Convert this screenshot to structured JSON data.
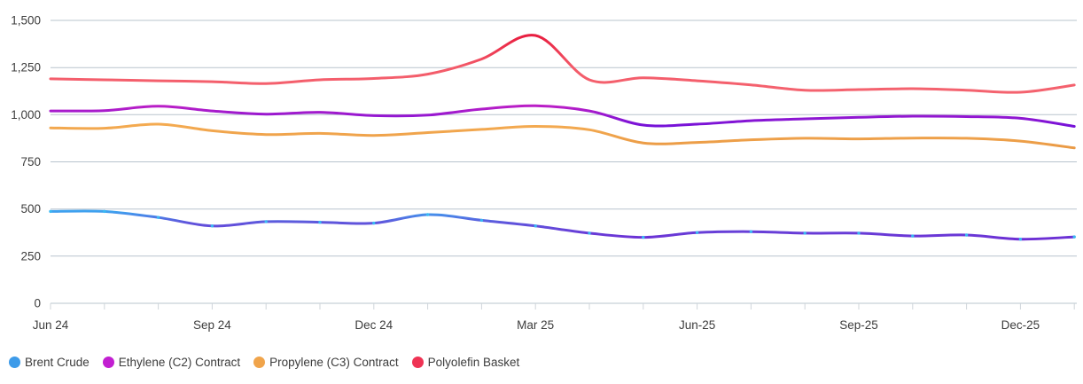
{
  "chart_data": {
    "type": "line",
    "title": "",
    "x_axis": {
      "point_count": 20,
      "labeled_ticks": [
        {
          "index": 0,
          "label": "Jun 24"
        },
        {
          "index": 3,
          "label": "Sep 24"
        },
        {
          "index": 6,
          "label": "Dec 24"
        },
        {
          "index": 9,
          "label": "Mar 25"
        },
        {
          "index": 12,
          "label": "Jun-25"
        },
        {
          "index": 15,
          "label": "Sep-25"
        },
        {
          "index": 18,
          "label": "Dec-25"
        }
      ]
    },
    "y_axis": {
      "min": 0,
      "max": 1500,
      "step": 250,
      "tick_labels": [
        "0",
        "250",
        "500",
        "750",
        "1,000",
        "1,250",
        "1,500"
      ]
    },
    "grid": {
      "horizontal": true,
      "color": "#b9c4cd",
      "tick_color": "#cfd5da"
    },
    "text_color": "#3d3d3d",
    "series": [
      {
        "name": "Brent Crude",
        "legend_color": "#3d9be9",
        "markers": true,
        "marker_color": "#39b9f3",
        "gradient": [
          {
            "offset": "0%",
            "color": "#3ea2ef"
          },
          {
            "offset": "40%",
            "color": "#5f55dc"
          },
          {
            "offset": "100%",
            "color": "#6d2ed4"
          }
        ],
        "values": [
          487,
          487,
          455,
          410,
          433,
          430,
          425,
          470,
          440,
          410,
          372,
          350,
          375,
          380,
          372,
          372,
          357,
          362,
          340,
          352
        ]
      },
      {
        "name": "Ethylene (C2) Contract",
        "legend_color": "#c21fd1",
        "markers": false,
        "marker_color": "#c21fd1",
        "gradient": [
          {
            "offset": "0%",
            "color": "#bb1fc6"
          },
          {
            "offset": "45%",
            "color": "#9718d0"
          },
          {
            "offset": "100%",
            "color": "#7412d8"
          }
        ],
        "values": [
          1020,
          1022,
          1045,
          1020,
          1003,
          1013,
          995,
          998,
          1030,
          1047,
          1020,
          945,
          950,
          968,
          978,
          986,
          992,
          990,
          981,
          938
        ]
      },
      {
        "name": "Propylene (C3) Contract",
        "legend_color": "#f0a44b",
        "markers": false,
        "marker_color": "#f0a44b",
        "gradient": [
          {
            "offset": "0%",
            "color": "#f4ab51"
          },
          {
            "offset": "100%",
            "color": "#ea9a45"
          }
        ],
        "values": [
          930,
          928,
          950,
          915,
          895,
          901,
          890,
          905,
          922,
          938,
          920,
          850,
          853,
          867,
          875,
          872,
          876,
          875,
          860,
          824
        ]
      },
      {
        "name": "Polyolefin Basket",
        "legend_color": "#ef3354",
        "markers": false,
        "marker_color": "#ef3354",
        "gradient": [
          {
            "offset": "0%",
            "color": "#e81d3f"
          },
          {
            "offset": "55%",
            "color": "#f35a69"
          },
          {
            "offset": "100%",
            "color": "#f4636f"
          }
        ],
        "values": [
          1190,
          1185,
          1180,
          1175,
          1165,
          1185,
          1192,
          1215,
          1295,
          1420,
          1185,
          1196,
          1180,
          1158,
          1130,
          1133,
          1138,
          1130,
          1119,
          1157
        ]
      }
    ]
  }
}
